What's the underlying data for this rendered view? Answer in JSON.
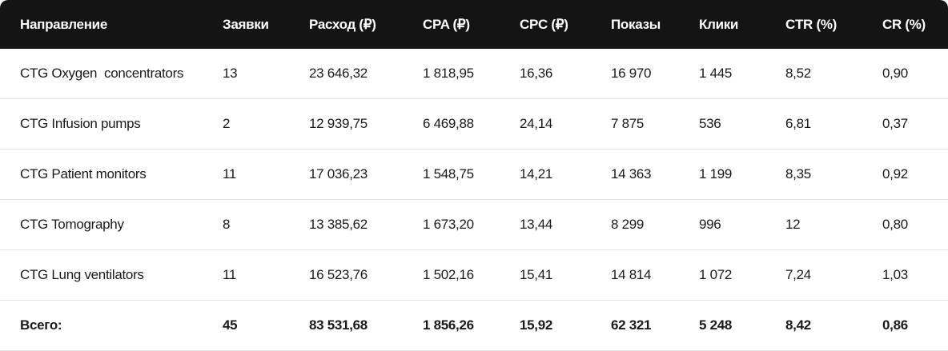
{
  "table": {
    "header": [
      "Направление",
      "Заявки",
      "Расход (₽)",
      "CPA (₽)",
      "CPC (₽)",
      "Показы",
      "Клики",
      "CTR (%)",
      "CR (%)"
    ],
    "rows": [
      [
        "CTG Oxygen  concentrators",
        "13",
        "23 646,32",
        "1 818,95",
        "16,36",
        "16 970",
        "1 445",
        "8,52",
        "0,90"
      ],
      [
        "CTG Infusion pumps",
        "2",
        "12 939,75",
        "6 469,88",
        "24,14",
        "7 875",
        "536",
        "6,81",
        "0,37"
      ],
      [
        "CTG Patient monitors",
        "11",
        "17 036,23",
        "1 548,75",
        "14,21",
        "14 363",
        "1 199",
        "8,35",
        "0,92"
      ],
      [
        "CTG Tomography",
        "8",
        "13 385,62",
        "1 673,20",
        "13,44",
        "8 299",
        "996",
        "12",
        "0,80"
      ],
      [
        "CTG Lung ventilators",
        "11",
        "16 523,76",
        "1 502,16",
        "15,41",
        "14 814",
        "1 072",
        "7,24",
        "1,03"
      ]
    ],
    "total": [
      "Всего:",
      "45",
      "83 531,68",
      "1 856,26",
      "15,92",
      "62 321",
      "5 248",
      "8,42",
      "0,86"
    ]
  }
}
